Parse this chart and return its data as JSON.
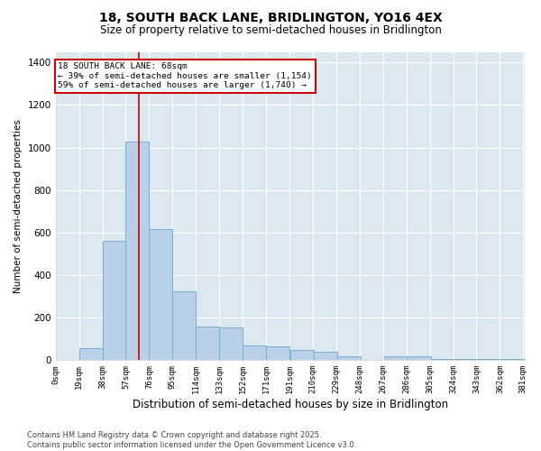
{
  "title1": "18, SOUTH BACK LANE, BRIDLINGTON, YO16 4EX",
  "title2": "Size of property relative to semi-detached houses in Bridlington",
  "xlabel": "Distribution of semi-detached houses by size in Bridlington",
  "ylabel": "Number of semi-detached properties",
  "footnote": "Contains HM Land Registry data © Crown copyright and database right 2025.\nContains public sector information licensed under the Open Government Licence v3.0.",
  "bar_left_edges": [
    0,
    19,
    38,
    57,
    76,
    95,
    114,
    133,
    152,
    171,
    191,
    210,
    229,
    248,
    267,
    286,
    305,
    324,
    343,
    362
  ],
  "bar_heights": [
    0,
    55,
    560,
    1030,
    615,
    325,
    160,
    155,
    70,
    65,
    50,
    40,
    20,
    0,
    20,
    20,
    5,
    5,
    5,
    5
  ],
  "bin_width": 19,
  "bar_color": "#b8d0e8",
  "bar_edge_color": "#7aaece",
  "bg_color": "#dce8f0",
  "property_size": 68,
  "annotation_title": "18 SOUTH BACK LANE: 68sqm",
  "annotation_line1": "← 39% of semi-detached houses are smaller (1,154)",
  "annotation_line2": "59% of semi-detached houses are larger (1,740) →",
  "vline_color": "#cc0000",
  "annotation_box_color": "#cc0000",
  "tick_labels": [
    "0sqm",
    "19sqm",
    "38sqm",
    "57sqm",
    "76sqm",
    "95sqm",
    "114sqm",
    "133sqm",
    "152sqm",
    "171sqm",
    "191sqm",
    "210sqm",
    "229sqm",
    "248sqm",
    "267sqm",
    "286sqm",
    "305sqm",
    "324sqm",
    "343sqm",
    "362sqm",
    "381sqm"
  ],
  "ylim": [
    0,
    1450
  ],
  "yticks": [
    0,
    200,
    400,
    600,
    800,
    1000,
    1200,
    1400
  ],
  "xlim_max": 381
}
